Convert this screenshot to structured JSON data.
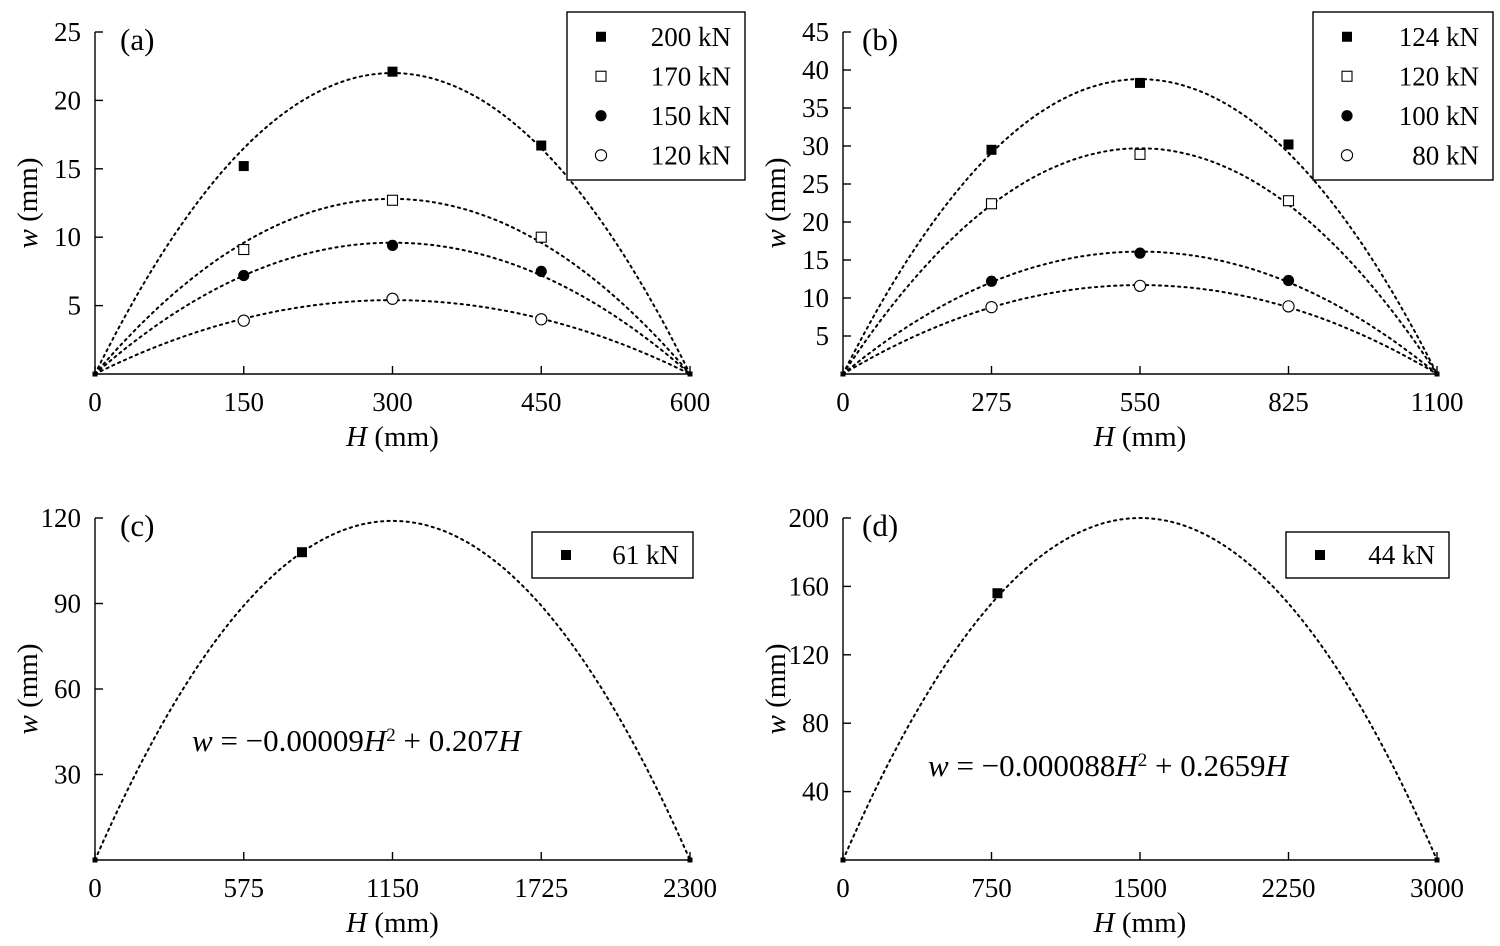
{
  "chart_data": [
    {
      "type": "scatter",
      "panel_label": "(a)",
      "xlabel_var": "H",
      "xlabel_unit": " (mm)",
      "ylabel_var": "w",
      "ylabel_unit": " (mm)",
      "xlim": [
        0,
        600
      ],
      "ylim": [
        0,
        25
      ],
      "xticks": [
        0,
        150,
        300,
        450,
        600
      ],
      "yticks": [
        5,
        10,
        15,
        20,
        25
      ],
      "legend_position": "top-right",
      "equation": null,
      "series": [
        {
          "name": "200 kN",
          "marker": "filled-square",
          "x": [
            0,
            150,
            300,
            450,
            600
          ],
          "y": [
            0,
            15.2,
            22.1,
            16.7,
            0
          ],
          "fit_peak": 22.0
        },
        {
          "name": "170 kN",
          "marker": "open-square",
          "x": [
            0,
            150,
            300,
            450,
            600
          ],
          "y": [
            0,
            9.1,
            12.7,
            10.0,
            0
          ],
          "fit_peak": 12.8
        },
        {
          "name": "150 kN",
          "marker": "filled-circle",
          "x": [
            0,
            150,
            300,
            450,
            600
          ],
          "y": [
            0,
            7.2,
            9.4,
            7.5,
            0
          ],
          "fit_peak": 9.6
        },
        {
          "name": "120 kN",
          "marker": "open-circle",
          "x": [
            0,
            150,
            300,
            450,
            600
          ],
          "y": [
            0,
            3.9,
            5.5,
            4.0,
            0
          ],
          "fit_peak": 5.4
        }
      ]
    },
    {
      "type": "scatter",
      "panel_label": "(b)",
      "xlabel_var": "H",
      "xlabel_unit": " (mm)",
      "ylabel_var": "w",
      "ylabel_unit": " (mm)",
      "xlim": [
        0,
        1100
      ],
      "ylim": [
        0,
        45
      ],
      "xticks": [
        0,
        275,
        550,
        825,
        1100
      ],
      "yticks": [
        5,
        10,
        15,
        20,
        25,
        30,
        35,
        40,
        45
      ],
      "legend_position": "top-right",
      "equation": null,
      "series": [
        {
          "name": "124 kN",
          "marker": "filled-square",
          "x": [
            0,
            275,
            550,
            825,
            1100
          ],
          "y": [
            0,
            29.5,
            38.3,
            30.2,
            0
          ],
          "fit_peak": 38.8
        },
        {
          "name": "120 kN",
          "marker": "open-square",
          "x": [
            0,
            275,
            550,
            825,
            1100
          ],
          "y": [
            0,
            22.4,
            28.9,
            22.8,
            0
          ],
          "fit_peak": 29.7
        },
        {
          "name": "100 kN",
          "marker": "filled-circle",
          "x": [
            0,
            275,
            550,
            825,
            1100
          ],
          "y": [
            0,
            12.2,
            15.9,
            12.3,
            0
          ],
          "fit_peak": 16.1
        },
        {
          "name": "80 kN",
          "marker": "open-circle",
          "x": [
            0,
            275,
            550,
            825,
            1100
          ],
          "y": [
            0,
            8.8,
            11.6,
            8.9,
            0
          ],
          "fit_peak": 11.7
        }
      ]
    },
    {
      "type": "scatter",
      "panel_label": "(c)",
      "xlabel_var": "H",
      "xlabel_unit": " (mm)",
      "ylabel_var": "w",
      "ylabel_unit": " (mm)",
      "xlim": [
        0,
        2300
      ],
      "ylim": [
        0,
        120
      ],
      "xticks": [
        0,
        575,
        1150,
        1725,
        2300
      ],
      "yticks": [
        30,
        60,
        90,
        120
      ],
      "legend_position": "top-right",
      "equation": {
        "lhs": "w",
        "eq": " = −0.00009",
        "var1": "H",
        "sup": "2",
        "mid": " + 0.207",
        "var2": "H"
      },
      "series": [
        {
          "name": "61 kN",
          "marker": "filled-square",
          "x": [
            0,
            800,
            2300
          ],
          "y": [
            0,
            108,
            0
          ],
          "fit_peak": 119
        }
      ]
    },
    {
      "type": "scatter",
      "panel_label": "(d)",
      "xlabel_var": "H",
      "xlabel_unit": " (mm)",
      "ylabel_var": "w",
      "ylabel_unit": " (mm)",
      "xlim": [
        0,
        3000
      ],
      "ylim": [
        0,
        200
      ],
      "xticks": [
        0,
        750,
        1500,
        2250,
        3000
      ],
      "yticks": [
        40,
        80,
        120,
        160,
        200
      ],
      "legend_position": "top-right",
      "equation": {
        "lhs": "w",
        "eq": " = −0.000088",
        "var1": "H",
        "sup": "2",
        "mid": " + 0.2659",
        "var2": "H"
      },
      "series": [
        {
          "name": "44 kN",
          "marker": "filled-square",
          "x": [
            0,
            780,
            3000
          ],
          "y": [
            0,
            156,
            0
          ],
          "fit_peak": 200
        }
      ]
    }
  ]
}
